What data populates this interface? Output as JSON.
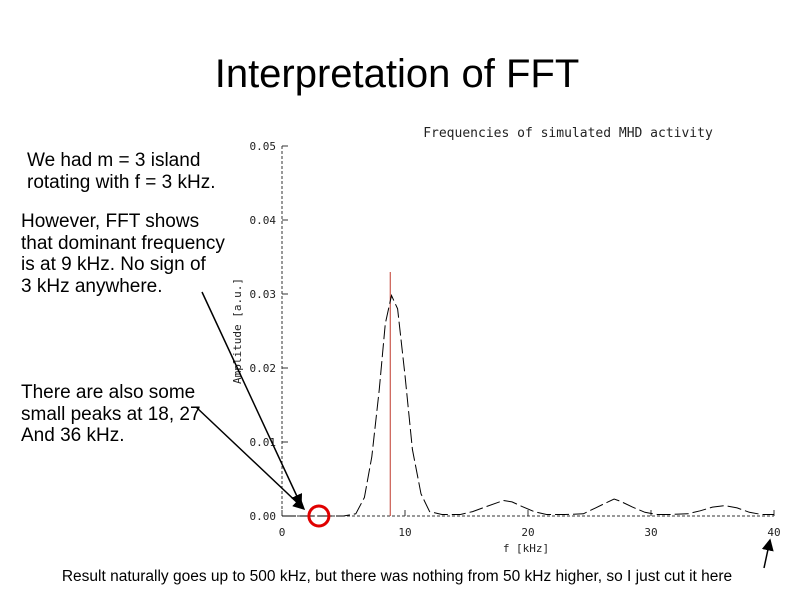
{
  "slide": {
    "title": "Interpretation of FFT",
    "notes": [
      "We had m = 3 island\nrotating with f = 3 kHz.",
      "However, FFT shows\nthat dominant frequency\nis at 9 kHz. No sign of\n3 kHz anywhere.",
      "There are also some\nsmall peaks at 18, 27\nAnd 36 kHz."
    ],
    "footer": "Result naturally goes up to 500 kHz, but there was nothing from 50 kHz higher, so I just cut it here"
  },
  "colors": {
    "marker_line": "#c0392b",
    "highlight_circle": "#e00000",
    "curve": "#000000",
    "axis": "#333333"
  },
  "chart_data": {
    "type": "line",
    "title": "Frequencies of simulated MHD activity",
    "xlabel": "f [kHz]",
    "ylabel": "Amplitude [a.u.]",
    "xlim": [
      0,
      40
    ],
    "ylim": [
      0,
      0.05
    ],
    "xticks": [
      "0",
      "10",
      "20",
      "30",
      "40"
    ],
    "yticks": [
      "0.00",
      "0.01",
      "0.02",
      "0.03",
      "0.04",
      "0.05"
    ],
    "grid": false,
    "marker_line_x": 8.8,
    "series": [
      {
        "x": [
          0,
          3,
          5,
          6,
          6.7,
          7.3,
          7.9,
          8.4,
          8.9,
          9.4,
          10,
          10.6,
          11.3,
          12,
          13,
          14.5,
          15.5,
          16.5,
          17.5,
          18,
          18.7,
          19.5,
          20.5,
          21.5,
          23,
          24.5,
          25.5,
          26.5,
          27,
          27.5,
          28.5,
          29.5,
          30.5,
          31.5,
          33,
          34,
          35,
          36,
          37,
          38,
          39,
          40
        ],
        "y": [
          0,
          0,
          0,
          0.0003,
          0.0025,
          0.008,
          0.017,
          0.026,
          0.0298,
          0.028,
          0.019,
          0.009,
          0.003,
          0.0006,
          0.0002,
          0.0002,
          0.0006,
          0.0012,
          0.0018,
          0.0021,
          0.0019,
          0.0013,
          0.0006,
          0.0002,
          0.0002,
          0.0003,
          0.0011,
          0.0019,
          0.0023,
          0.002,
          0.0012,
          0.0005,
          0.0002,
          0.0002,
          0.0003,
          0.0007,
          0.0012,
          0.0014,
          0.0011,
          0.0005,
          0.0002,
          0.0002
        ]
      }
    ],
    "highlight": {
      "x": 3,
      "y": 0
    }
  }
}
